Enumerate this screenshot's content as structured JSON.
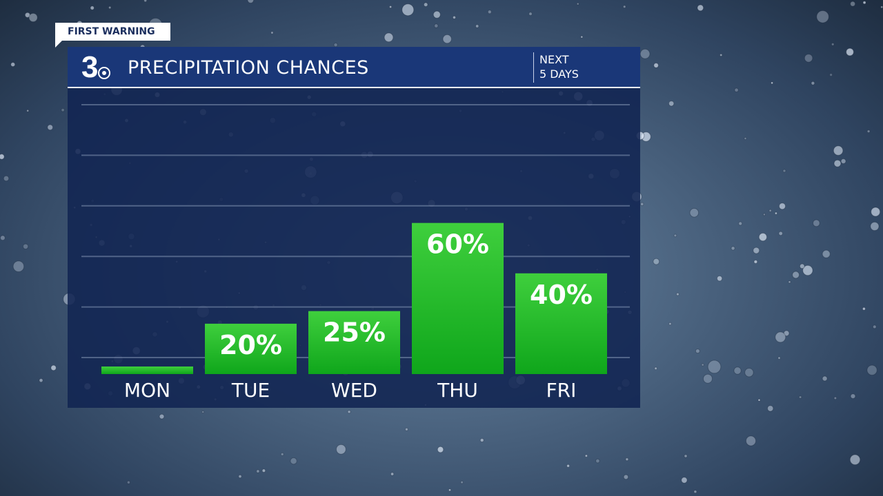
{
  "badge": {
    "label": "FIRST WARNING"
  },
  "header": {
    "logo_text": "3",
    "title": "PRECIPITATION CHANCES",
    "subtitle_line1": "NEXT",
    "subtitle_line2": "5 DAYS"
  },
  "colors": {
    "panel": "#112452",
    "header": "#1a3778",
    "bar_top": "#39c93a",
    "bar_bottom": "#0fa61b",
    "text": "#ffffff",
    "badge_text": "#1b2f5e"
  },
  "chart_data": {
    "type": "bar",
    "categories": [
      "MON",
      "TUE",
      "WED",
      "THU",
      "FRI"
    ],
    "values": [
      3,
      20,
      25,
      60,
      40
    ],
    "data_labels": [
      "",
      "20%",
      "25%",
      "60%",
      "40%"
    ],
    "ylim": [
      0,
      100
    ],
    "grid": true
  }
}
